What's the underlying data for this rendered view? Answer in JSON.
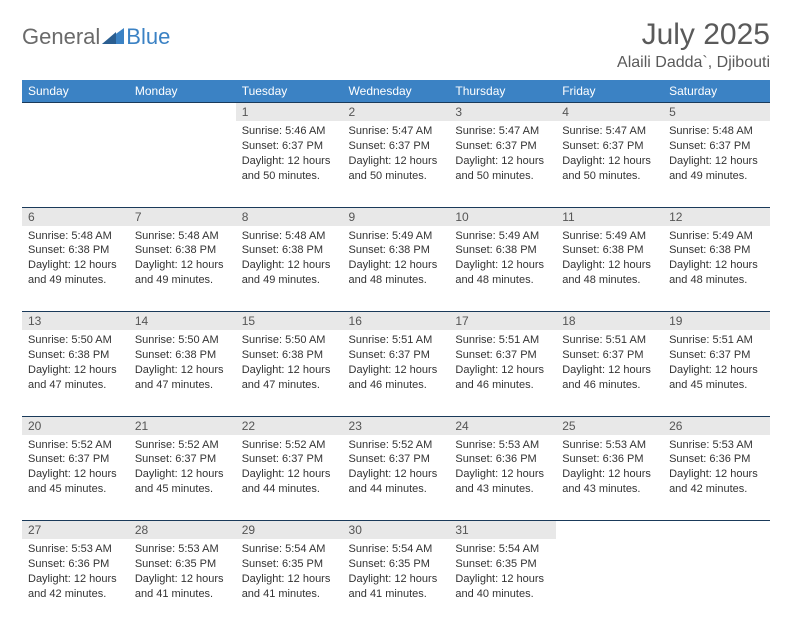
{
  "brand": {
    "part1": "General",
    "part2": "Blue",
    "color_gray": "#6a6a6a",
    "color_blue": "#3b82c4"
  },
  "title": "July 2025",
  "location": "Alaili Dadda`, Djibouti",
  "header_bg": "#3b82c4",
  "header_fg": "#ffffff",
  "daynum_bg": "#e8e8e8",
  "row_border": "#1a3a5a",
  "days_of_week": [
    "Sunday",
    "Monday",
    "Tuesday",
    "Wednesday",
    "Thursday",
    "Friday",
    "Saturday"
  ],
  "weeks": [
    {
      "nums": [
        "",
        "",
        "1",
        "2",
        "3",
        "4",
        "5"
      ],
      "cells": [
        null,
        null,
        {
          "sunrise": "Sunrise: 5:46 AM",
          "sunset": "Sunset: 6:37 PM",
          "day1": "Daylight: 12 hours",
          "day2": "and 50 minutes."
        },
        {
          "sunrise": "Sunrise: 5:47 AM",
          "sunset": "Sunset: 6:37 PM",
          "day1": "Daylight: 12 hours",
          "day2": "and 50 minutes."
        },
        {
          "sunrise": "Sunrise: 5:47 AM",
          "sunset": "Sunset: 6:37 PM",
          "day1": "Daylight: 12 hours",
          "day2": "and 50 minutes."
        },
        {
          "sunrise": "Sunrise: 5:47 AM",
          "sunset": "Sunset: 6:37 PM",
          "day1": "Daylight: 12 hours",
          "day2": "and 50 minutes."
        },
        {
          "sunrise": "Sunrise: 5:48 AM",
          "sunset": "Sunset: 6:37 PM",
          "day1": "Daylight: 12 hours",
          "day2": "and 49 minutes."
        }
      ]
    },
    {
      "nums": [
        "6",
        "7",
        "8",
        "9",
        "10",
        "11",
        "12"
      ],
      "cells": [
        {
          "sunrise": "Sunrise: 5:48 AM",
          "sunset": "Sunset: 6:38 PM",
          "day1": "Daylight: 12 hours",
          "day2": "and 49 minutes."
        },
        {
          "sunrise": "Sunrise: 5:48 AM",
          "sunset": "Sunset: 6:38 PM",
          "day1": "Daylight: 12 hours",
          "day2": "and 49 minutes."
        },
        {
          "sunrise": "Sunrise: 5:48 AM",
          "sunset": "Sunset: 6:38 PM",
          "day1": "Daylight: 12 hours",
          "day2": "and 49 minutes."
        },
        {
          "sunrise": "Sunrise: 5:49 AM",
          "sunset": "Sunset: 6:38 PM",
          "day1": "Daylight: 12 hours",
          "day2": "and 48 minutes."
        },
        {
          "sunrise": "Sunrise: 5:49 AM",
          "sunset": "Sunset: 6:38 PM",
          "day1": "Daylight: 12 hours",
          "day2": "and 48 minutes."
        },
        {
          "sunrise": "Sunrise: 5:49 AM",
          "sunset": "Sunset: 6:38 PM",
          "day1": "Daylight: 12 hours",
          "day2": "and 48 minutes."
        },
        {
          "sunrise": "Sunrise: 5:49 AM",
          "sunset": "Sunset: 6:38 PM",
          "day1": "Daylight: 12 hours",
          "day2": "and 48 minutes."
        }
      ]
    },
    {
      "nums": [
        "13",
        "14",
        "15",
        "16",
        "17",
        "18",
        "19"
      ],
      "cells": [
        {
          "sunrise": "Sunrise: 5:50 AM",
          "sunset": "Sunset: 6:38 PM",
          "day1": "Daylight: 12 hours",
          "day2": "and 47 minutes."
        },
        {
          "sunrise": "Sunrise: 5:50 AM",
          "sunset": "Sunset: 6:38 PM",
          "day1": "Daylight: 12 hours",
          "day2": "and 47 minutes."
        },
        {
          "sunrise": "Sunrise: 5:50 AM",
          "sunset": "Sunset: 6:38 PM",
          "day1": "Daylight: 12 hours",
          "day2": "and 47 minutes."
        },
        {
          "sunrise": "Sunrise: 5:51 AM",
          "sunset": "Sunset: 6:37 PM",
          "day1": "Daylight: 12 hours",
          "day2": "and 46 minutes."
        },
        {
          "sunrise": "Sunrise: 5:51 AM",
          "sunset": "Sunset: 6:37 PM",
          "day1": "Daylight: 12 hours",
          "day2": "and 46 minutes."
        },
        {
          "sunrise": "Sunrise: 5:51 AM",
          "sunset": "Sunset: 6:37 PM",
          "day1": "Daylight: 12 hours",
          "day2": "and 46 minutes."
        },
        {
          "sunrise": "Sunrise: 5:51 AM",
          "sunset": "Sunset: 6:37 PM",
          "day1": "Daylight: 12 hours",
          "day2": "and 45 minutes."
        }
      ]
    },
    {
      "nums": [
        "20",
        "21",
        "22",
        "23",
        "24",
        "25",
        "26"
      ],
      "cells": [
        {
          "sunrise": "Sunrise: 5:52 AM",
          "sunset": "Sunset: 6:37 PM",
          "day1": "Daylight: 12 hours",
          "day2": "and 45 minutes."
        },
        {
          "sunrise": "Sunrise: 5:52 AM",
          "sunset": "Sunset: 6:37 PM",
          "day1": "Daylight: 12 hours",
          "day2": "and 45 minutes."
        },
        {
          "sunrise": "Sunrise: 5:52 AM",
          "sunset": "Sunset: 6:37 PM",
          "day1": "Daylight: 12 hours",
          "day2": "and 44 minutes."
        },
        {
          "sunrise": "Sunrise: 5:52 AM",
          "sunset": "Sunset: 6:37 PM",
          "day1": "Daylight: 12 hours",
          "day2": "and 44 minutes."
        },
        {
          "sunrise": "Sunrise: 5:53 AM",
          "sunset": "Sunset: 6:36 PM",
          "day1": "Daylight: 12 hours",
          "day2": "and 43 minutes."
        },
        {
          "sunrise": "Sunrise: 5:53 AM",
          "sunset": "Sunset: 6:36 PM",
          "day1": "Daylight: 12 hours",
          "day2": "and 43 minutes."
        },
        {
          "sunrise": "Sunrise: 5:53 AM",
          "sunset": "Sunset: 6:36 PM",
          "day1": "Daylight: 12 hours",
          "day2": "and 42 minutes."
        }
      ]
    },
    {
      "nums": [
        "27",
        "28",
        "29",
        "30",
        "31",
        "",
        ""
      ],
      "cells": [
        {
          "sunrise": "Sunrise: 5:53 AM",
          "sunset": "Sunset: 6:36 PM",
          "day1": "Daylight: 12 hours",
          "day2": "and 42 minutes."
        },
        {
          "sunrise": "Sunrise: 5:53 AM",
          "sunset": "Sunset: 6:35 PM",
          "day1": "Daylight: 12 hours",
          "day2": "and 41 minutes."
        },
        {
          "sunrise": "Sunrise: 5:54 AM",
          "sunset": "Sunset: 6:35 PM",
          "day1": "Daylight: 12 hours",
          "day2": "and 41 minutes."
        },
        {
          "sunrise": "Sunrise: 5:54 AM",
          "sunset": "Sunset: 6:35 PM",
          "day1": "Daylight: 12 hours",
          "day2": "and 41 minutes."
        },
        {
          "sunrise": "Sunrise: 5:54 AM",
          "sunset": "Sunset: 6:35 PM",
          "day1": "Daylight: 12 hours",
          "day2": "and 40 minutes."
        },
        null,
        null
      ]
    }
  ]
}
